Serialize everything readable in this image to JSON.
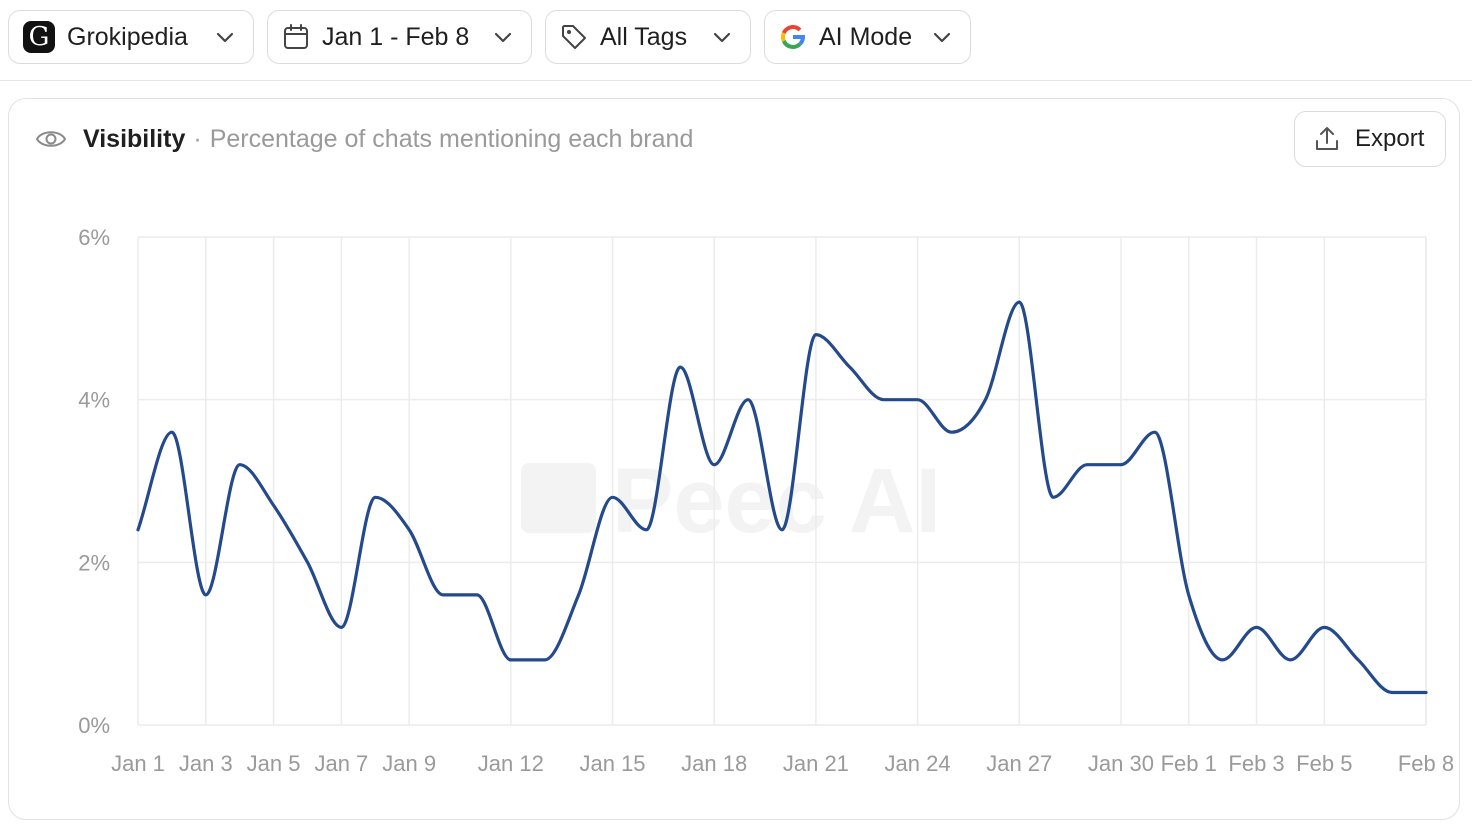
{
  "filters": {
    "brand": {
      "label": "Grokipedia",
      "logo_letter": "G",
      "icon": "grokipedia-logo-icon"
    },
    "date_range": {
      "label": "Jan 1 - Feb 8",
      "icon": "calendar-icon"
    },
    "tags": {
      "label": "All Tags",
      "icon": "tag-icon"
    },
    "engine": {
      "label": "AI Mode",
      "icon": "google-logo-icon"
    }
  },
  "card": {
    "title": "Visibility",
    "separator": "·",
    "subtitle": "Percentage of chats mentioning each brand",
    "export_label": "Export",
    "icons": {
      "header": "eye-icon",
      "export": "upload-icon",
      "dropdown": "chevron-down-icon"
    }
  },
  "colors": {
    "line": "#244a8c",
    "grid": "#ececec",
    "tick_text": "#9a9a9a"
  },
  "chart_data": {
    "type": "line",
    "watermark": "Peec AI",
    "x": [
      "Jan 1",
      "Jan 2",
      "Jan 3",
      "Jan 4",
      "Jan 5",
      "Jan 6",
      "Jan 7",
      "Jan 8",
      "Jan 9",
      "Jan 10",
      "Jan 11",
      "Jan 12",
      "Jan 13",
      "Jan 14",
      "Jan 15",
      "Jan 16",
      "Jan 17",
      "Jan 18",
      "Jan 19",
      "Jan 20",
      "Jan 21",
      "Jan 22",
      "Jan 23",
      "Jan 24",
      "Jan 25",
      "Jan 26",
      "Jan 27",
      "Jan 28",
      "Jan 29",
      "Jan 30",
      "Jan 31",
      "Feb 1",
      "Feb 2",
      "Feb 3",
      "Feb 4",
      "Feb 5",
      "Feb 6",
      "Feb 7",
      "Feb 8"
    ],
    "x_ticks": [
      "Jan 1",
      "Jan 3",
      "Jan 5",
      "Jan 7",
      "Jan 9",
      "Jan 12",
      "Jan 15",
      "Jan 18",
      "Jan 21",
      "Jan 24",
      "Jan 27",
      "Jan 30",
      "Feb 1",
      "Feb 3",
      "Feb 5",
      "Feb 8"
    ],
    "series": [
      {
        "values": [
          2.4,
          3.6,
          1.6,
          3.2,
          2.7,
          2.0,
          1.2,
          2.8,
          2.4,
          1.6,
          1.6,
          0.8,
          0.8,
          1.6,
          2.8,
          2.4,
          4.4,
          3.2,
          4.0,
          2.4,
          4.8,
          4.4,
          4.0,
          4.0,
          3.6,
          4.0,
          5.2,
          2.8,
          3.2,
          3.2,
          3.6,
          1.6,
          0.8,
          1.2,
          0.8,
          1.2,
          0.8,
          0.4,
          0.4
        ]
      }
    ],
    "y_ticks": [
      "0%",
      "2%",
      "4%",
      "6%"
    ],
    "ylim": [
      0,
      6
    ],
    "y_unit": "%",
    "grid": true,
    "legend": "none"
  }
}
